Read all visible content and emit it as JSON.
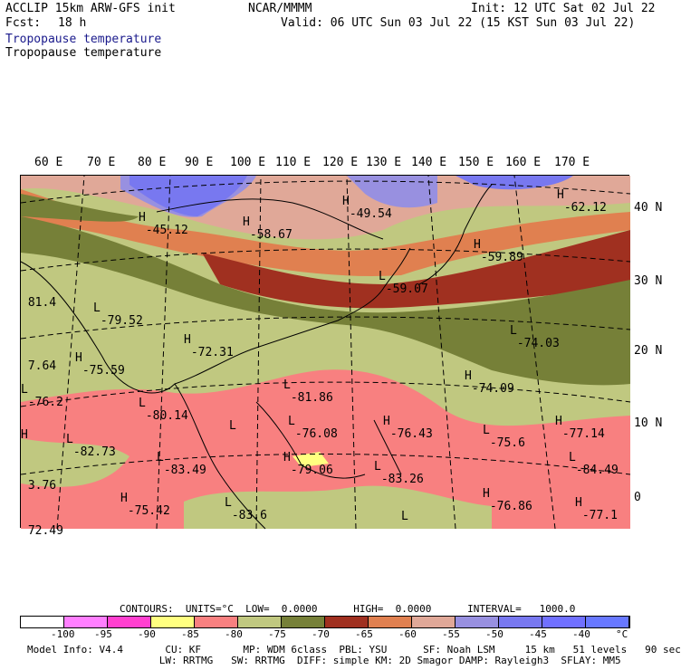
{
  "header": {
    "model": "ACCLIP 15km ARW-GFS init",
    "org": "NCAR/MMMM",
    "init": "Init: 12 UTC Sat 02 Jul 22",
    "fcst_label": "Fcst:",
    "fcst_value": "18 h",
    "valid": "Valid: 06 UTC Sun 03 Jul 22 (15 KST Sun 03 Jul 22)",
    "field1": "Tropopause temperature",
    "field2": "Tropopause temperature"
  },
  "axes": {
    "lon": [
      "60 E",
      "70 E",
      "80 E",
      "90 E",
      "100 E",
      "110 E",
      "120 E",
      "130 E",
      "140 E",
      "150 E",
      "160 E",
      "170 E"
    ],
    "lat": [
      "40 N",
      "30 N",
      "20 N",
      "10 N",
      "0"
    ]
  },
  "labels": [
    {
      "t": "H",
      "v": "-45.12"
    },
    {
      "t": "H",
      "v": "-58.67"
    },
    {
      "t": "H",
      "v": "-49.54"
    },
    {
      "t": "H",
      "v": "-62.12"
    },
    {
      "t": "H",
      "v": "-59.89"
    },
    {
      "t": "L",
      "v": "-59.07"
    },
    {
      "t": "L",
      "v": "-79.52"
    },
    {
      "t": "H",
      "v": "-72.31"
    },
    {
      "t": "L",
      "v": "-74.03"
    },
    {
      "t": "H",
      "v": "-75.59"
    },
    {
      "t": "L",
      "v": "-81.86"
    },
    {
      "t": "H",
      "v": "-74.09"
    },
    {
      "t": "L",
      "v": "-80.14"
    },
    {
      "t": "L",
      "v": "-76.08"
    },
    {
      "t": "H",
      "v": "-76.43"
    },
    {
      "t": "L",
      "v": "-75.6"
    },
    {
      "t": "H",
      "v": "-77.14"
    },
    {
      "t": "L",
      "v": "-82.73"
    },
    {
      "t": "L",
      "v": "-83.49"
    },
    {
      "t": "H",
      "v": "-79.06"
    },
    {
      "t": "L",
      "v": "-83.26"
    },
    {
      "t": "L",
      "v": "-84.49"
    },
    {
      "t": "H",
      "v": "-75.42"
    },
    {
      "t": "L",
      "v": "-83.6"
    },
    {
      "t": "H",
      "v": "-76.86"
    },
    {
      "t": "H",
      "v": "-77.1"
    },
    {
      "t": "L",
      "v": "-76.2"
    },
    {
      "t": "",
      "v": "81.4"
    },
    {
      "t": "",
      "v": "7.64"
    },
    {
      "t": "",
      "v": "3.76"
    },
    {
      "t": "",
      "v": "72.49"
    },
    {
      "t": "H",
      "v": ""
    },
    {
      "t": "L",
      "v": ""
    },
    {
      "t": "L",
      "v": ""
    }
  ],
  "contours": {
    "text": "CONTOURS:  UNITS=°C  LOW=  0.0000      HIGH=  0.0000      INTERVAL=   1000.0"
  },
  "colorbar": {
    "colors": [
      "#ffffff",
      "#ff7fff",
      "#ff40d0",
      "#ffff80",
      "#f88080",
      "#c0c880",
      "#768038",
      "#a03020",
      "#e08050",
      "#e0a898",
      "#9890e0",
      "#7878f0",
      "#7070ff",
      "#6878ff"
    ],
    "ticks": [
      "-100",
      "-95",
      "-90",
      "-85",
      "-80",
      "-75",
      "-70",
      "-65",
      "-60",
      "-55",
      "-50",
      "-45",
      "-40",
      "°C"
    ]
  },
  "footer": {
    "line1": "Model Info: V4.4       CU: KF       MP: WDM 6class  PBL: YSU      SF: Noah LSM     15 km   51 levels   90 sec",
    "line2": "                      LW: RRTMG   SW: RRTMG  DIFF: simple KM: 2D Smagor DAMP: Rayleigh3  SFLAY: MM5"
  },
  "colors": {
    "c_pink": "#f88080",
    "c_tan": "#c0c880",
    "c_olive": "#768038",
    "c_red": "#a03020",
    "c_orange": "#e08050",
    "c_rose": "#e0a898",
    "c_lav": "#9890e0",
    "c_blue": "#7878f0",
    "c_yellow": "#ffff80"
  }
}
